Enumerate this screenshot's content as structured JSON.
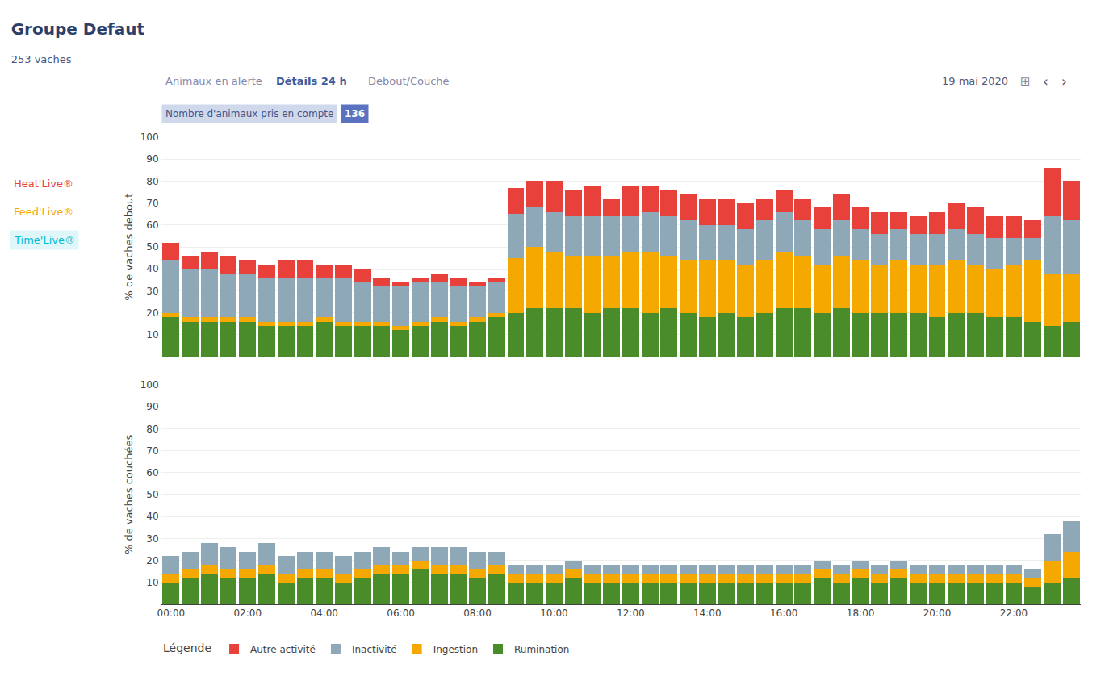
{
  "chart_data": [
    {
      "type": "bar",
      "title": "Groupe Defaut",
      "subtitle": "253 vaches",
      "annotations": [
        "Animaux en alerte",
        "Détails 24 h",
        "Debout/Couché",
        "Nombre d'animaux pris en compte",
        "136",
        "19 mai 2020",
        "⊞",
        "‹",
        "›",
        "Heat'Live®",
        "Feed'Live®",
        "Time'Live®"
      ],
      "legend_label": "Légende",
      "legend": "bottom",
      "stacked": true,
      "grid": true,
      "tick_labels": "y",
      "ylabel": "% de vaches debout",
      "categories": [
        "00:00",
        null,
        null,
        null,
        "02:00",
        null,
        null,
        null,
        "04:00",
        null,
        null,
        null,
        "06:00",
        null,
        null,
        null,
        "08:00",
        null,
        null,
        null,
        "10:00",
        null,
        null,
        null,
        "12:00",
        null,
        null,
        null,
        "14:00",
        null,
        null,
        null,
        "16:00",
        null,
        null,
        null,
        "18:00",
        null,
        null,
        null,
        "20:00",
        null,
        null,
        null,
        "22:00",
        null,
        null,
        null
      ],
      "ylim": [
        0,
        100
      ],
      "yticks": [
        10,
        20,
        30,
        40,
        50,
        60,
        70,
        80,
        90,
        100
      ],
      "series": [
        {
          "name": "Rumination",
          "color": "#4a8c2a",
          "values": [
            18,
            16,
            16,
            16,
            16,
            14,
            14,
            14,
            16,
            14,
            14,
            14,
            12,
            14,
            16,
            14,
            16,
            18,
            20,
            22,
            22,
            22,
            20,
            22,
            22,
            20,
            22,
            20,
            18,
            20,
            18,
            20,
            22,
            22,
            20,
            22,
            20,
            20,
            20,
            20,
            18,
            20,
            20,
            18,
            18,
            16,
            14,
            16
          ]
        },
        {
          "name": "Ingestion",
          "color": "#f5a800",
          "values": [
            2,
            2,
            2,
            2,
            2,
            2,
            2,
            2,
            2,
            2,
            2,
            2,
            2,
            2,
            2,
            2,
            2,
            2,
            25,
            28,
            26,
            24,
            26,
            24,
            26,
            28,
            24,
            24,
            26,
            24,
            24,
            24,
            26,
            24,
            22,
            24,
            24,
            22,
            24,
            22,
            24,
            24,
            22,
            22,
            24,
            28,
            24,
            22
          ]
        },
        {
          "name": "Inactivité",
          "color": "#8fa8b8",
          "values": [
            24,
            22,
            22,
            20,
            20,
            20,
            20,
            20,
            18,
            20,
            18,
            16,
            18,
            18,
            16,
            16,
            14,
            14,
            20,
            18,
            18,
            18,
            18,
            18,
            16,
            18,
            18,
            18,
            16,
            16,
            16,
            18,
            18,
            16,
            16,
            16,
            14,
            14,
            14,
            14,
            14,
            14,
            14,
            14,
            12,
            10,
            26,
            24
          ]
        },
        {
          "name": "Autre activité",
          "color": "#e8413c",
          "values": [
            8,
            6,
            8,
            8,
            6,
            6,
            8,
            8,
            6,
            6,
            6,
            4,
            2,
            2,
            4,
            4,
            2,
            2,
            12,
            12,
            14,
            12,
            14,
            8,
            14,
            12,
            12,
            12,
            12,
            12,
            12,
            10,
            10,
            10,
            10,
            12,
            10,
            10,
            8,
            8,
            10,
            12,
            12,
            10,
            10,
            8,
            22,
            18
          ]
        }
      ]
    },
    {
      "type": "bar",
      "stacked": true,
      "grid": true,
      "ylabel": "% de vaches couchées",
      "categories": [
        "00:00",
        null,
        null,
        null,
        "02:00",
        null,
        null,
        null,
        "04:00",
        null,
        null,
        null,
        "06:00",
        null,
        null,
        null,
        "08:00",
        null,
        null,
        null,
        "10:00",
        null,
        null,
        null,
        "12:00",
        null,
        null,
        null,
        "14:00",
        null,
        null,
        null,
        "16:00",
        null,
        null,
        null,
        "18:00",
        null,
        null,
        null,
        "20:00",
        null,
        null,
        null,
        "22:00",
        null,
        null,
        null
      ],
      "ylim": [
        0,
        100
      ],
      "yticks": [
        10,
        20,
        30,
        40,
        50,
        60,
        70,
        80,
        90,
        100
      ],
      "series": [
        {
          "name": "Rumination",
          "color": "#4a8c2a",
          "values": [
            10,
            12,
            14,
            12,
            12,
            14,
            10,
            12,
            12,
            10,
            12,
            14,
            14,
            16,
            14,
            14,
            12,
            14,
            10,
            10,
            10,
            12,
            10,
            10,
            10,
            10,
            10,
            10,
            10,
            10,
            10,
            10,
            10,
            10,
            12,
            10,
            12,
            10,
            12,
            10,
            10,
            10,
            10,
            10,
            10,
            8,
            10,
            12
          ]
        },
        {
          "name": "Ingestion",
          "color": "#f5a800",
          "values": [
            4,
            4,
            4,
            4,
            4,
            4,
            4,
            4,
            4,
            4,
            4,
            4,
            4,
            4,
            4,
            4,
            4,
            4,
            4,
            4,
            4,
            4,
            4,
            4,
            4,
            4,
            4,
            4,
            4,
            4,
            4,
            4,
            4,
            4,
            4,
            4,
            4,
            4,
            4,
            4,
            4,
            4,
            4,
            4,
            4,
            4,
            10,
            12
          ]
        },
        {
          "name": "Inactivité",
          "color": "#8fa8b8",
          "values": [
            8,
            8,
            10,
            10,
            8,
            10,
            8,
            8,
            8,
            8,
            8,
            8,
            6,
            6,
            8,
            8,
            8,
            6,
            4,
            4,
            4,
            4,
            4,
            4,
            4,
            4,
            4,
            4,
            4,
            4,
            4,
            4,
            4,
            4,
            4,
            4,
            4,
            4,
            4,
            4,
            4,
            4,
            4,
            4,
            4,
            4,
            12,
            14
          ]
        },
        {
          "name": "Autre activité",
          "color": "#e8413c",
          "values": [
            0,
            0,
            0,
            0,
            0,
            0,
            0,
            0,
            0,
            0,
            0,
            0,
            0,
            0,
            0,
            0,
            0,
            0,
            0,
            0,
            0,
            0,
            0,
            0,
            0,
            0,
            0,
            0,
            0,
            0,
            0,
            0,
            0,
            0,
            0,
            0,
            0,
            0,
            0,
            0,
            0,
            0,
            0,
            0,
            0,
            0,
            0,
            0
          ]
        }
      ]
    }
  ]
}
